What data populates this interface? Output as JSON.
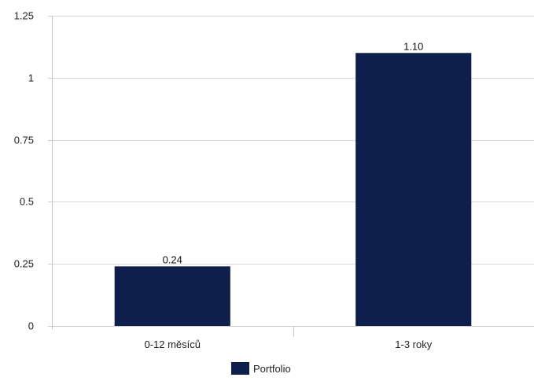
{
  "chart_data": {
    "type": "bar",
    "categories": [
      "0-12 měsíců",
      "1-3 roky"
    ],
    "series": [
      {
        "name": "Portfolio",
        "values": [
          0.24,
          1.1
        ]
      }
    ],
    "data_labels": [
      "0.24",
      "1.10"
    ],
    "y_ticks": [
      0,
      0.25,
      0.5,
      0.75,
      1,
      1.25
    ],
    "y_tick_labels": [
      "0",
      "0.25",
      "0.5",
      "0.75",
      "1",
      "1.25"
    ],
    "ylim": [
      0,
      1.25
    ],
    "title": "",
    "xlabel": "",
    "ylabel": "",
    "grid": "horizontal",
    "legend_position": "bottom",
    "colors": {
      "bar": "#0f1f4b",
      "grid": "#d9d9d9",
      "axis": "#c8c8c8"
    }
  }
}
